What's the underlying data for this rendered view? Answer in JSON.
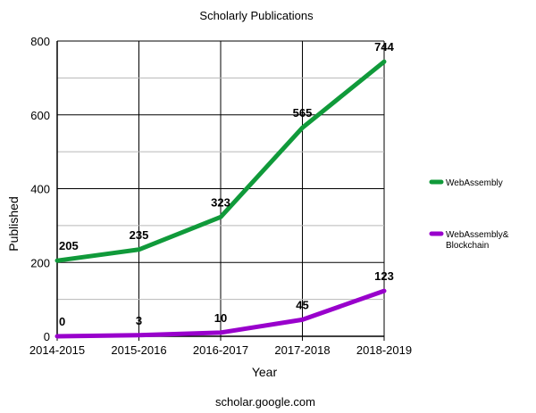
{
  "chart_data": {
    "type": "line",
    "title": "Scholarly Publications",
    "xlabel": "Year",
    "ylabel": "Published",
    "categories": [
      "2014-2015",
      "2015-2016",
      "2016-2017",
      "2017-2018",
      "2018-2019"
    ],
    "ylim": [
      0,
      800
    ],
    "yticks": [
      0,
      200,
      400,
      600,
      800
    ],
    "grid": true,
    "legend_position": "right",
    "series": [
      {
        "name": "WebAssembly",
        "values": [
          205,
          235,
          323,
          565,
          744
        ],
        "color": "#109a3a"
      },
      {
        "name": "WebAssembly& Blockchain",
        "name_lines": [
          "WebAssembly&",
          "Blockchain"
        ],
        "values": [
          0,
          3,
          10,
          45,
          123
        ],
        "color": "#9900cc"
      }
    ],
    "source": "scholar.google.com"
  }
}
